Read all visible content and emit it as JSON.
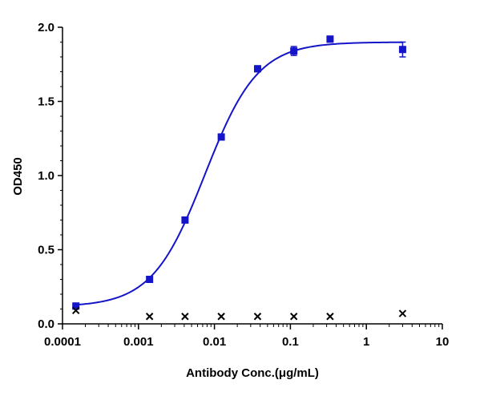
{
  "chart_data": {
    "type": "scatter",
    "xlabel": "Antibody Conc.(μg/mL)",
    "ylabel": "OD450",
    "xscale": "log",
    "xlim": [
      0.0001,
      10
    ],
    "ylim": [
      0,
      2.0
    ],
    "x_ticks": [
      {
        "value": 0.0001,
        "label": "0.0001"
      },
      {
        "value": 0.001,
        "label": "0.001"
      },
      {
        "value": 0.01,
        "label": "0.01"
      },
      {
        "value": 0.1,
        "label": "0.1"
      },
      {
        "value": 1,
        "label": "1"
      },
      {
        "value": 10,
        "label": "10"
      }
    ],
    "y_ticks": [
      {
        "value": 0.0,
        "label": "0.0"
      },
      {
        "value": 0.5,
        "label": "0.5"
      },
      {
        "value": 1.0,
        "label": "1.0"
      },
      {
        "value": 1.5,
        "label": "1.5"
      },
      {
        "value": 2.0,
        "label": "2.0"
      }
    ],
    "grid": false,
    "legend": "none",
    "series": [
      {
        "marker": "square",
        "color": "#1414c8",
        "x": [
          0.00015,
          0.0014,
          0.0041,
          0.0123,
          0.037,
          0.111,
          0.333,
          3.0
        ],
        "y": [
          0.12,
          0.3,
          0.7,
          1.26,
          1.72,
          1.84,
          1.92,
          1.85
        ],
        "error": [
          0.02,
          0.02,
          0.02,
          0.02,
          0.02,
          0.03,
          0.02,
          0.05
        ]
      },
      {
        "marker": "x",
        "color": "#000000",
        "x": [
          0.00015,
          0.0014,
          0.0041,
          0.0123,
          0.037,
          0.111,
          0.333,
          3.0
        ],
        "y": [
          0.09,
          0.05,
          0.05,
          0.05,
          0.05,
          0.05,
          0.05,
          0.07
        ]
      }
    ],
    "fit": {
      "type": "4PL",
      "color": "#1414c8",
      "bottom": 0.115,
      "top": 1.9,
      "ec50": 0.0075,
      "hill": 1.25
    }
  }
}
